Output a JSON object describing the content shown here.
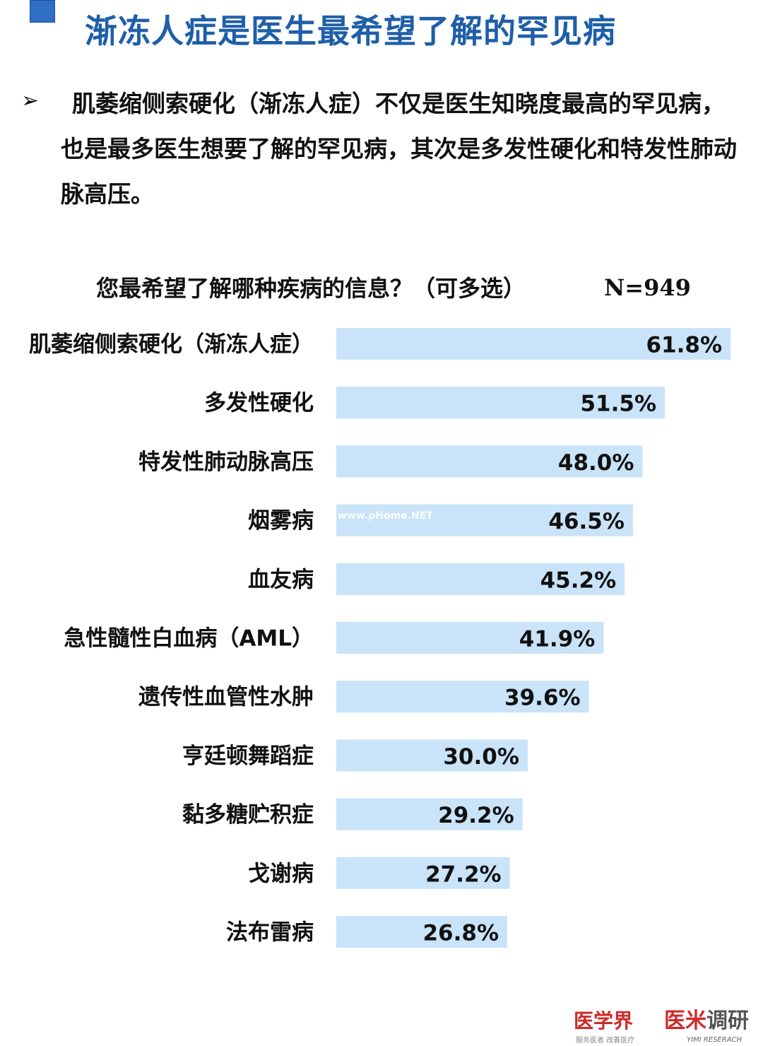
{
  "header": {
    "title": "渐冻人症是医生最希望了解的罕见病"
  },
  "bullet": {
    "text": "肌萎缩侧索硬化（渐冻人症）不仅是医生知晓度最高的罕见病，也是最多医生想要了解的罕见病，其次是多发性硬化和特发性肺动脉高压。"
  },
  "survey": {
    "question": "您最希望了解哪种疾病的信息？（可多选）",
    "sample_size": "N=949"
  },
  "watermark": "www.pHome.NET",
  "logos": {
    "left_main": "医学界",
    "left_sub": "服务医者 改善医疗",
    "right_main_red": "医米",
    "right_main_grey": "调研",
    "right_sub": "YIMI RESERACH"
  },
  "colors": {
    "bar_fill": "#c9e3f8",
    "title_color": "#1f5fa8"
  },
  "chart_data": {
    "type": "bar",
    "orientation": "horizontal",
    "categories": [
      "肌萎缩侧索硬化（渐冻人症）",
      "多发性硬化",
      "特发性肺动脉高压",
      "烟雾病",
      "血友病",
      "急性髓性白血病（AML）",
      "遗传性血管性水肿",
      "亨廷顿舞蹈症",
      "黏多糖贮积症",
      "戈谢病",
      "法布雷病"
    ],
    "values": [
      61.8,
      51.5,
      48.0,
      46.5,
      45.2,
      41.9,
      39.6,
      30.0,
      29.2,
      27.2,
      26.8
    ],
    "value_labels": [
      "61.8%",
      "51.5%",
      "48.0%",
      "46.5%",
      "45.2%",
      "41.9%",
      "39.6%",
      "30.0%",
      "29.2%",
      "27.2%",
      "26.8%"
    ],
    "unit": "%",
    "grid": false,
    "legend": false
  }
}
